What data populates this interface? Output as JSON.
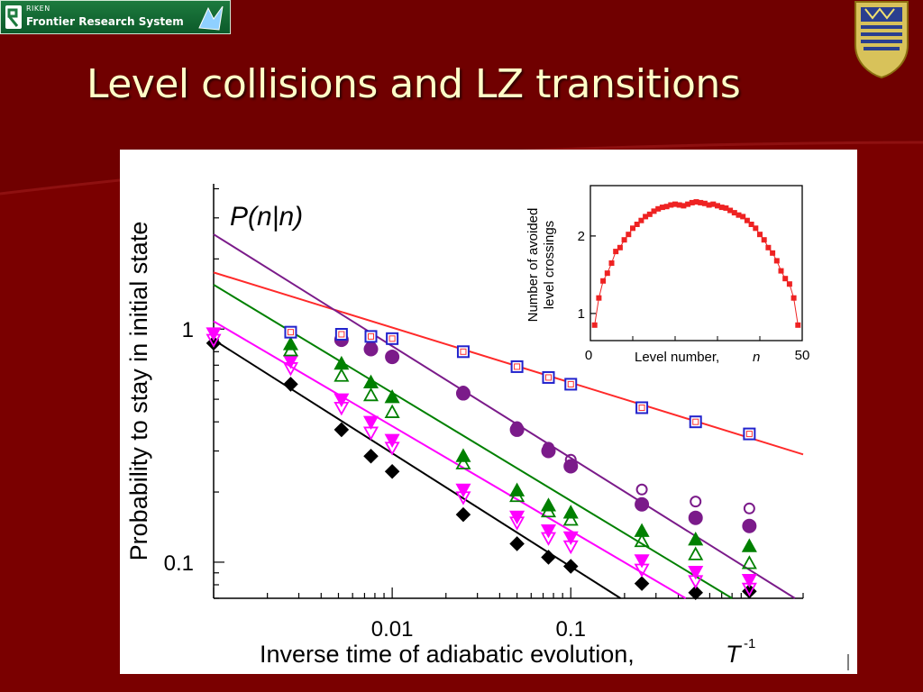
{
  "header": {
    "logo_riken": "RIKEN",
    "logo_text": "Frontier Research System",
    "title": "Level collisions and LZ transitions"
  },
  "colors": {
    "background": "#7a0000",
    "title": "#ffffc8",
    "black_series": "#000000",
    "magenta_series": "#ff00ff",
    "green_series": "#008000",
    "purple_series": "#7b1b8a",
    "red_fit": "#ff2a2a",
    "square_series": "#2222cc"
  },
  "chart_data": [
    {
      "type": "scatter",
      "title": "P(n|n)",
      "xlabel": "Inverse time of adiabatic evolution,",
      "xlabel_symbol": "T",
      "xlabel_exp": "-1",
      "ylabel": "Probability to stay in initial state",
      "xscale": "log",
      "yscale": "log",
      "xlim": [
        0.001,
        2
      ],
      "ylim": [
        0.07,
        4.2
      ],
      "xticks": [
        {
          "value": 0.01,
          "label": "0.01"
        },
        {
          "value": 0.1,
          "label": "0.1"
        }
      ],
      "yticks": [
        {
          "value": 1,
          "label": "1"
        },
        {
          "value": 0.1,
          "label": "0.1"
        }
      ],
      "series": [
        {
          "marker": "diamond-filled",
          "color": "#000000",
          "points": [
            [
              0.001,
              0.87
            ],
            [
              0.0027,
              0.58
            ],
            [
              0.0052,
              0.37
            ],
            [
              0.0076,
              0.285
            ],
            [
              0.01,
              0.245
            ],
            [
              0.025,
              0.16
            ],
            [
              0.05,
              0.12
            ],
            [
              0.075,
              0.105
            ],
            [
              0.1,
              0.096
            ],
            [
              0.25,
              0.081
            ],
            [
              0.5,
              0.074
            ],
            [
              1.0,
              0.075
            ]
          ]
        },
        {
          "marker": "triangle-down-open",
          "color": "#ff00ff",
          "points": [
            [
              0.001,
              0.9
            ],
            [
              0.0027,
              0.68
            ],
            [
              0.0052,
              0.46
            ],
            [
              0.0076,
              0.36
            ],
            [
              0.01,
              0.31
            ],
            [
              0.025,
              0.19
            ],
            [
              0.05,
              0.148
            ],
            [
              0.075,
              0.127
            ],
            [
              0.1,
              0.117
            ],
            [
              0.25,
              0.093
            ],
            [
              0.5,
              0.083
            ],
            [
              1.0,
              0.077
            ]
          ]
        },
        {
          "marker": "triangle-down-filled",
          "color": "#ff00ff",
          "points": [
            [
              0.001,
              0.96
            ],
            [
              0.0027,
              0.73
            ],
            [
              0.0052,
              0.5
            ],
            [
              0.0076,
              0.4
            ],
            [
              0.01,
              0.335
            ],
            [
              0.025,
              0.205
            ],
            [
              0.05,
              0.157
            ],
            [
              0.075,
              0.137
            ],
            [
              0.1,
              0.128
            ],
            [
              0.25,
              0.102
            ],
            [
              0.5,
              0.091
            ],
            [
              1.0,
              0.084
            ]
          ]
        },
        {
          "marker": "triangle-up-open",
          "color": "#008000",
          "points": [
            [
              0.0027,
              0.81
            ],
            [
              0.0052,
              0.63
            ],
            [
              0.0076,
              0.52
            ],
            [
              0.01,
              0.44
            ],
            [
              0.025,
              0.265
            ],
            [
              0.05,
              0.192
            ],
            [
              0.075,
              0.165
            ],
            [
              0.1,
              0.152
            ],
            [
              0.25,
              0.123
            ],
            [
              0.5,
              0.108
            ],
            [
              1.0,
              0.099
            ]
          ]
        },
        {
          "marker": "triangle-up-filled",
          "color": "#008000",
          "points": [
            [
              0.0027,
              0.86
            ],
            [
              0.0052,
              0.71
            ],
            [
              0.0076,
              0.59
            ],
            [
              0.01,
              0.51
            ],
            [
              0.025,
              0.285
            ],
            [
              0.05,
              0.203
            ],
            [
              0.075,
              0.175
            ],
            [
              0.1,
              0.163
            ],
            [
              0.25,
              0.136
            ],
            [
              0.5,
              0.125
            ],
            [
              1.0,
              0.117
            ]
          ]
        },
        {
          "marker": "circle-open",
          "color": "#7b1b8a",
          "points": [
            [
              0.0052,
              0.94
            ],
            [
              0.0076,
              0.84
            ],
            [
              0.01,
              0.77
            ],
            [
              0.025,
              0.54
            ],
            [
              0.05,
              0.38
            ],
            [
              0.075,
              0.31
            ],
            [
              0.1,
              0.275
            ],
            [
              0.25,
              0.205
            ],
            [
              0.5,
              0.182
            ],
            [
              1.0,
              0.17
            ]
          ]
        },
        {
          "marker": "circle-filled",
          "color": "#7b1b8a",
          "points": [
            [
              0.0052,
              0.9
            ],
            [
              0.0076,
              0.82
            ],
            [
              0.01,
              0.76
            ],
            [
              0.025,
              0.53
            ],
            [
              0.05,
              0.37
            ],
            [
              0.075,
              0.3
            ],
            [
              0.1,
              0.258
            ],
            [
              0.25,
              0.177
            ],
            [
              0.5,
              0.155
            ],
            [
              1.0,
              0.143
            ]
          ]
        },
        {
          "marker": "square-open",
          "color": "#2222cc",
          "points": [
            [
              0.0027,
              0.97
            ],
            [
              0.0052,
              0.95
            ],
            [
              0.0076,
              0.93
            ],
            [
              0.01,
              0.91
            ],
            [
              0.025,
              0.8
            ],
            [
              0.05,
              0.69
            ],
            [
              0.075,
              0.62
            ],
            [
              0.1,
              0.58
            ],
            [
              0.25,
              0.46
            ],
            [
              0.5,
              0.4
            ],
            [
              1.0,
              0.355
            ]
          ]
        }
      ],
      "fits": [
        {
          "color": "#ff2a2a",
          "from": [
            0.001,
            1.75
          ],
          "to": [
            2.0,
            0.29
          ]
        },
        {
          "color": "#7b1b8a",
          "from": [
            0.001,
            2.55
          ],
          "to": [
            1.8,
            0.07
          ]
        },
        {
          "color": "#008000",
          "from": [
            0.001,
            1.55
          ],
          "to": [
            0.8,
            0.07
          ]
        },
        {
          "color": "#ff00ff",
          "from": [
            0.001,
            1.08
          ],
          "to": [
            0.44,
            0.07
          ]
        },
        {
          "color": "#000000",
          "from": [
            0.001,
            0.9
          ],
          "to": [
            0.19,
            0.07
          ]
        }
      ]
    },
    {
      "type": "line",
      "xlabel": "Level number,",
      "xlabel_symbol": "n",
      "ylabel_line1": "Number of avoided",
      "ylabel_line2": "level crossings",
      "xlim": [
        0,
        50
      ],
      "ylim": [
        0.65,
        2.65
      ],
      "xticks": [
        {
          "value": 0,
          "label": "0"
        },
        {
          "value": 50,
          "label": "50"
        }
      ],
      "yticks": [
        {
          "value": 1,
          "label": "1"
        },
        {
          "value": 2,
          "label": "2"
        }
      ],
      "color": "#ee2222",
      "x": [
        1,
        2,
        3,
        4,
        5,
        6,
        7,
        8,
        9,
        10,
        11,
        12,
        13,
        14,
        15,
        16,
        17,
        18,
        19,
        20,
        21,
        22,
        23,
        24,
        25,
        26,
        27,
        28,
        29,
        30,
        31,
        32,
        33,
        34,
        35,
        36,
        37,
        38,
        39,
        40,
        41,
        42,
        43,
        44,
        45,
        46,
        47,
        48,
        49
      ],
      "y": [
        0.85,
        1.2,
        1.42,
        1.52,
        1.65,
        1.8,
        1.85,
        1.95,
        2.02,
        2.1,
        2.15,
        2.2,
        2.25,
        2.28,
        2.32,
        2.35,
        2.37,
        2.38,
        2.4,
        2.41,
        2.4,
        2.39,
        2.41,
        2.43,
        2.44,
        2.43,
        2.42,
        2.4,
        2.41,
        2.39,
        2.37,
        2.36,
        2.33,
        2.3,
        2.27,
        2.25,
        2.2,
        2.15,
        2.1,
        2.02,
        1.95,
        1.85,
        1.78,
        1.68,
        1.55,
        1.45,
        1.38,
        1.2,
        0.85
      ]
    }
  ]
}
